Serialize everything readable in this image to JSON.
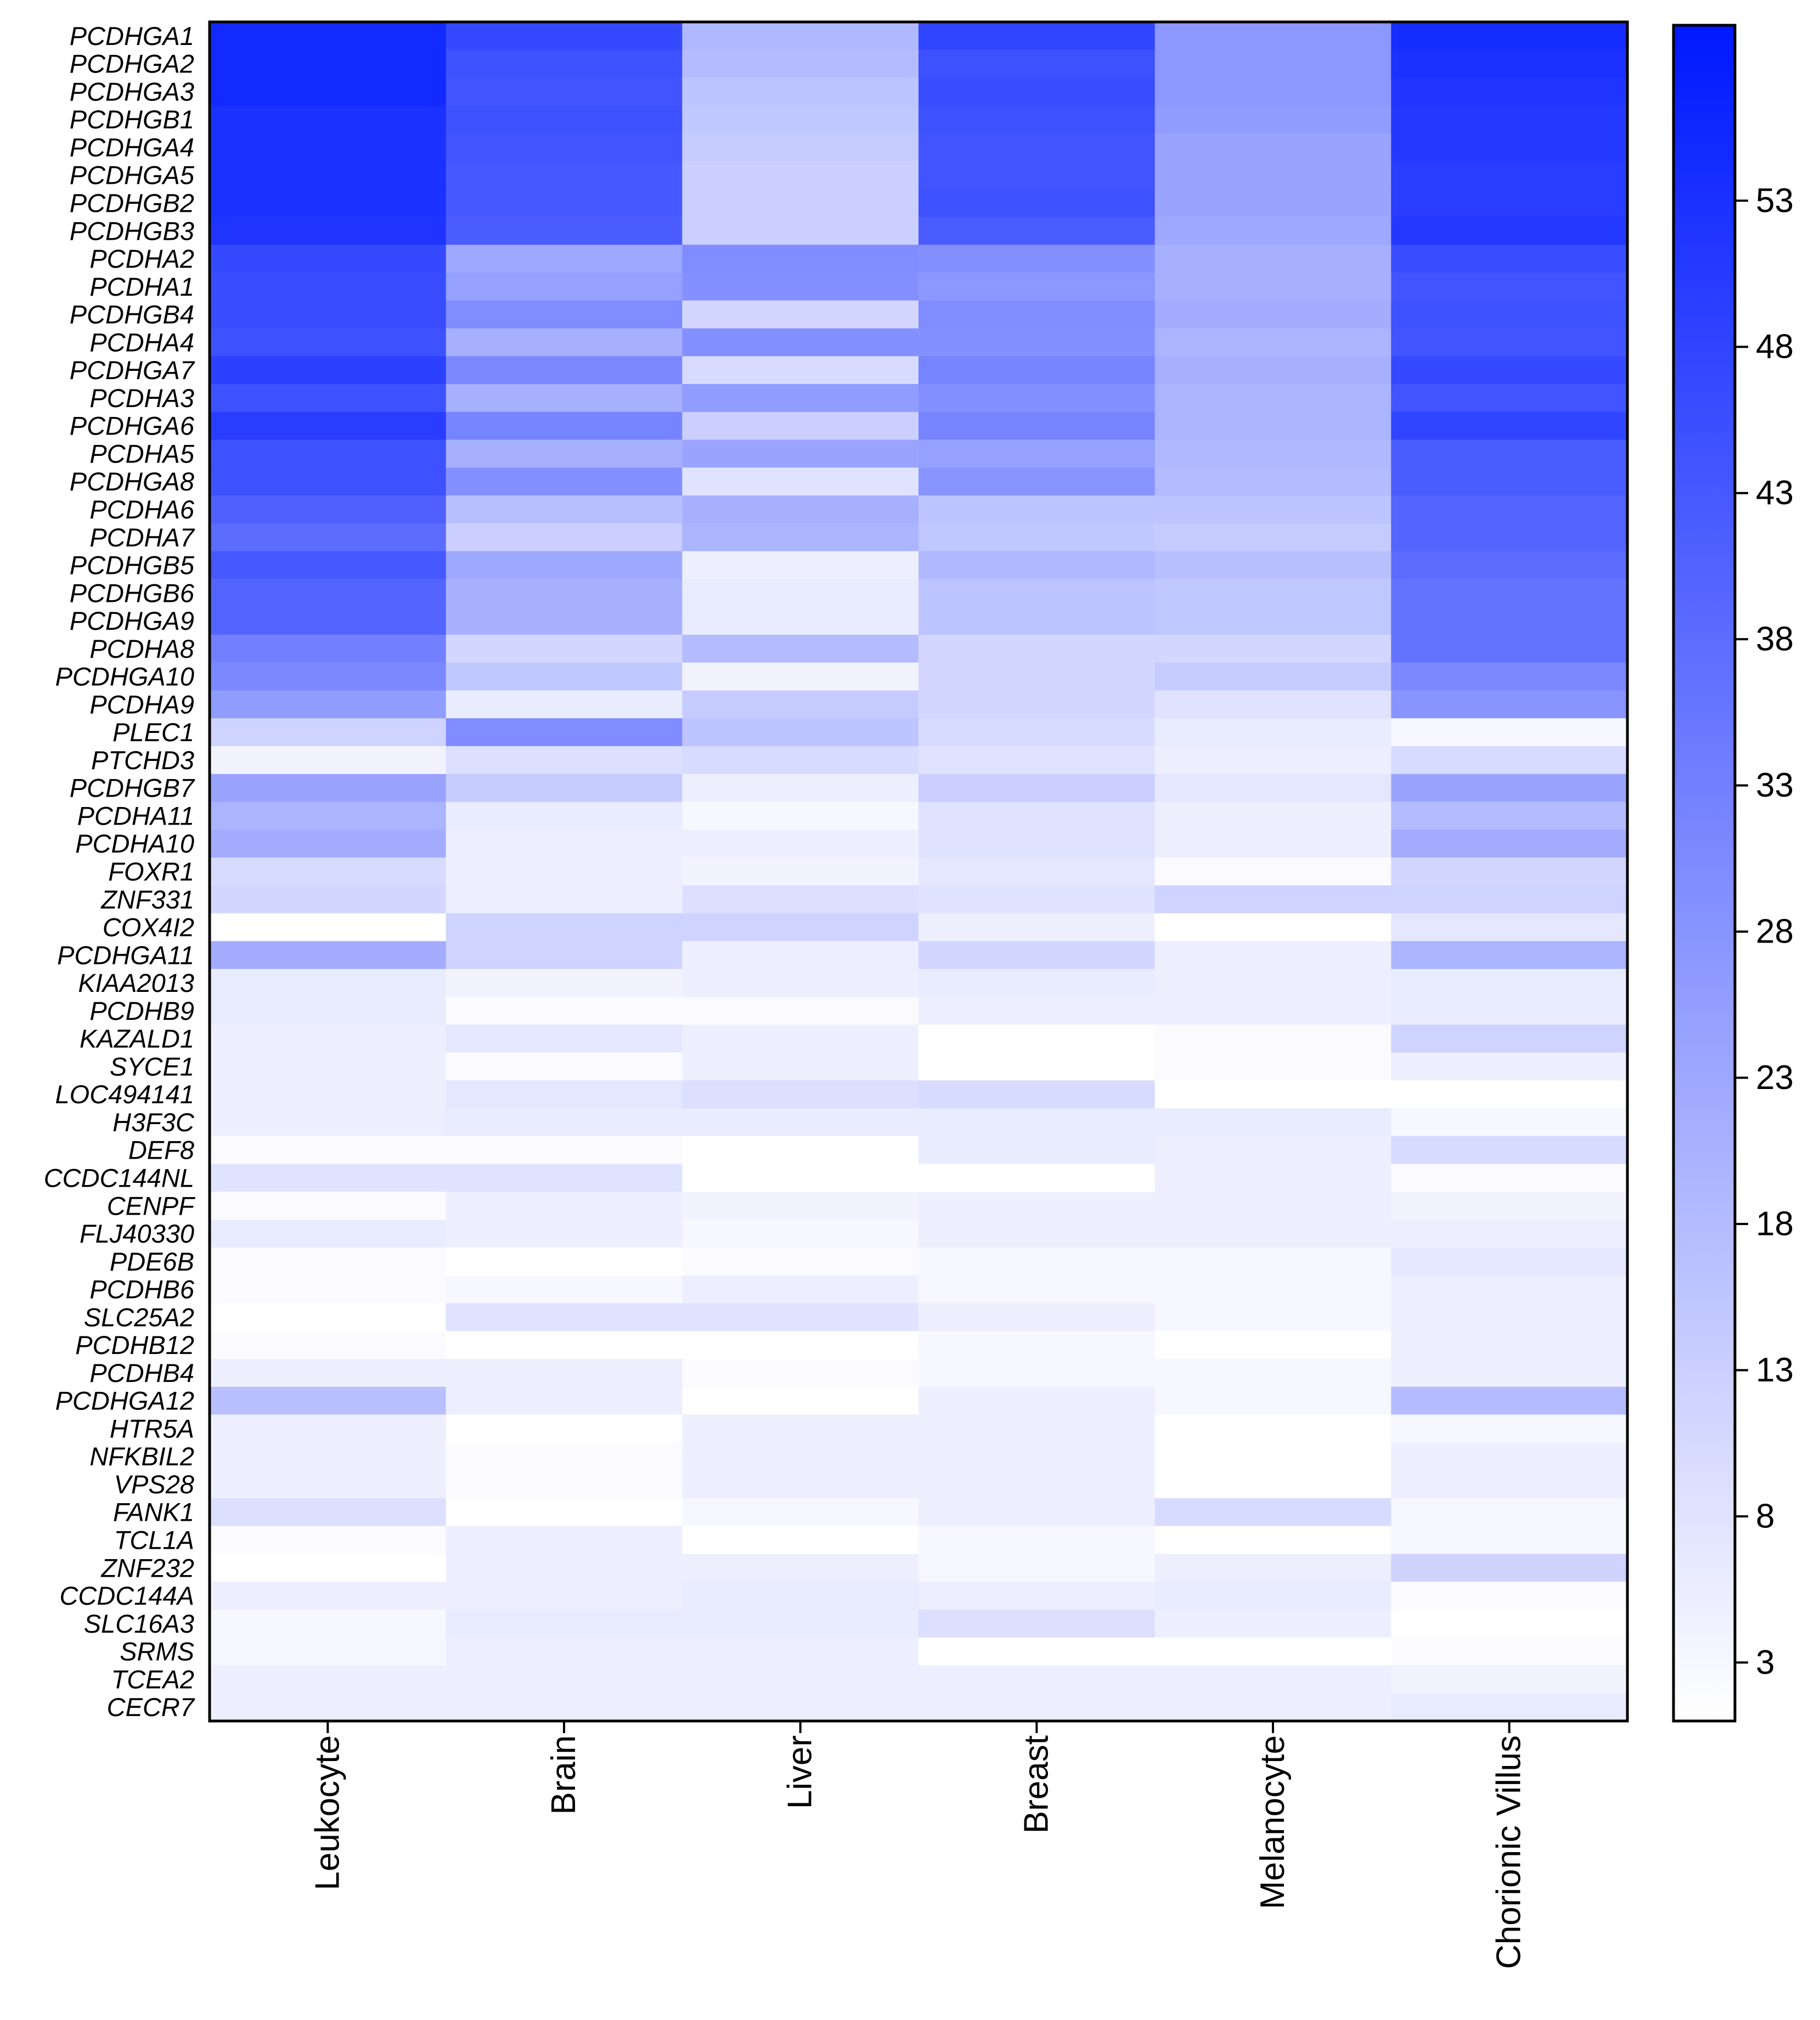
{
  "chart_data": {
    "type": "heatmap",
    "title": "",
    "xlabel": "",
    "ylabel": "",
    "columns": [
      "Leukocyte",
      "Brain",
      "Liver",
      "Breast",
      "Melanocyte",
      "Chorionic Villus"
    ],
    "rows": [
      {
        "gene": "PCDHGA1",
        "values": [
          55,
          47,
          19,
          48,
          27,
          54
        ]
      },
      {
        "gene": "PCDHGA2",
        "values": [
          55,
          45,
          18,
          45,
          27,
          53
        ]
      },
      {
        "gene": "PCDHGA3",
        "values": [
          55,
          44,
          16,
          46,
          27,
          52
        ]
      },
      {
        "gene": "PCDHGB1",
        "values": [
          53,
          45,
          15,
          45,
          26,
          51
        ]
      },
      {
        "gene": "PCDHGA4",
        "values": [
          53,
          44,
          14,
          44,
          24,
          51
        ]
      },
      {
        "gene": "PCDHGA5",
        "values": [
          53,
          43,
          13,
          44,
          24,
          50
        ]
      },
      {
        "gene": "PCDHGB2",
        "values": [
          53,
          43,
          13,
          45,
          24,
          50
        ]
      },
      {
        "gene": "PCDHGB3",
        "values": [
          52,
          42,
          13,
          42,
          23,
          51
        ]
      },
      {
        "gene": "PCDHA2",
        "values": [
          47,
          23,
          30,
          29,
          21,
          46
        ]
      },
      {
        "gene": "PCDHA1",
        "values": [
          46,
          25,
          29,
          27,
          21,
          44
        ]
      },
      {
        "gene": "PCDHGB4",
        "values": [
          46,
          30,
          11,
          30,
          22,
          45
        ]
      },
      {
        "gene": "PCDHA4",
        "values": [
          45,
          21,
          29,
          29,
          20,
          44
        ]
      },
      {
        "gene": "PCDHGA7",
        "values": [
          49,
          31,
          10,
          32,
          21,
          47
        ]
      },
      {
        "gene": "PCDHA3",
        "values": [
          45,
          21,
          26,
          29,
          20,
          44
        ]
      },
      {
        "gene": "PCDHGA6",
        "values": [
          50,
          32,
          13,
          32,
          20,
          48
        ]
      },
      {
        "gene": "PCDHA5",
        "values": [
          45,
          21,
          24,
          25,
          19,
          42
        ]
      },
      {
        "gene": "PCDHGA8",
        "values": [
          45,
          29,
          8,
          28,
          18,
          42
        ]
      },
      {
        "gene": "PCDHA6",
        "values": [
          41,
          17,
          21,
          16,
          16,
          40
        ]
      },
      {
        "gene": "PCDHA7",
        "values": [
          38,
          13,
          20,
          15,
          14,
          40
        ]
      },
      {
        "gene": "PCDHGB5",
        "values": [
          43,
          23,
          5,
          19,
          17,
          38
        ]
      },
      {
        "gene": "PCDHGB6",
        "values": [
          40,
          21,
          6,
          16,
          15,
          36
        ]
      },
      {
        "gene": "PCDHGA9",
        "values": [
          40,
          21,
          6,
          16,
          15,
          36
        ]
      },
      {
        "gene": "PCDHA8",
        "values": [
          33,
          11,
          18,
          11,
          11,
          36
        ]
      },
      {
        "gene": "PCDHGA10",
        "values": [
          31,
          15,
          4,
          11,
          14,
          31
        ]
      },
      {
        "gene": "PCDHA9",
        "values": [
          26,
          6,
          14,
          11,
          8,
          28
        ]
      },
      {
        "gene": "PLEC1",
        "values": [
          12,
          30,
          16,
          10,
          6,
          3
        ]
      },
      {
        "gene": "PTCHD3",
        "values": [
          4,
          9,
          10,
          8,
          5,
          10
        ]
      },
      {
        "gene": "PCDHGB7",
        "values": [
          24,
          14,
          5,
          13,
          7,
          24
        ]
      },
      {
        "gene": "PCDHA11",
        "values": [
          20,
          6,
          3,
          8,
          5,
          18
        ]
      },
      {
        "gene": "PCDHA10",
        "values": [
          22,
          5,
          5,
          8,
          5,
          22
        ]
      },
      {
        "gene": "FOXR1",
        "values": [
          10,
          5,
          4,
          7,
          2,
          11
        ]
      },
      {
        "gene": "ZNF331",
        "values": [
          11,
          5,
          9,
          8,
          12,
          12
        ]
      },
      {
        "gene": "COX4I2",
        "values": [
          0,
          12,
          12,
          5,
          0,
          7
        ]
      },
      {
        "gene": "PCDHGA11",
        "values": [
          22,
          12,
          5,
          11,
          5,
          20
        ]
      },
      {
        "gene": "KIAA2013",
        "values": [
          6,
          4,
          5,
          6,
          5,
          6
        ]
      },
      {
        "gene": "PCDHB9",
        "values": [
          6,
          2,
          2,
          5,
          5,
          6
        ]
      },
      {
        "gene": "KAZALD1",
        "values": [
          5,
          7,
          5,
          0,
          2,
          12
        ]
      },
      {
        "gene": "SYCE1",
        "values": [
          5,
          2,
          5,
          1,
          2,
          5
        ]
      },
      {
        "gene": "LOC494141",
        "values": [
          5,
          7,
          9,
          10,
          0,
          0
        ]
      },
      {
        "gene": "H3F3C",
        "values": [
          5,
          6,
          6,
          6,
          6,
          3
        ]
      },
      {
        "gene": "DEF8",
        "values": [
          2,
          2,
          0,
          6,
          5,
          10
        ]
      },
      {
        "gene": "CCDC144NL",
        "values": [
          8,
          8,
          0,
          0,
          5,
          2
        ]
      },
      {
        "gene": "CENPF",
        "values": [
          2,
          5,
          4,
          5,
          5,
          4
        ]
      },
      {
        "gene": "FLJ40330",
        "values": [
          6,
          5,
          3,
          5,
          5,
          5
        ]
      },
      {
        "gene": "PDE6B",
        "values": [
          2,
          0,
          2,
          3,
          3,
          7
        ]
      },
      {
        "gene": "PCDHB6",
        "values": [
          2,
          3,
          5,
          3,
          3,
          5
        ]
      },
      {
        "gene": "SLC25A2",
        "values": [
          0,
          8,
          8,
          5,
          3,
          5
        ]
      },
      {
        "gene": "PCDHB12",
        "values": [
          2,
          0,
          0,
          3,
          0,
          5
        ]
      },
      {
        "gene": "PCDHB4",
        "values": [
          5,
          5,
          2,
          3,
          3,
          5
        ]
      },
      {
        "gene": "PCDHGA12",
        "values": [
          17,
          5,
          0,
          5,
          3,
          18
        ]
      },
      {
        "gene": "HTR5A",
        "values": [
          5,
          0,
          5,
          5,
          0,
          3
        ]
      },
      {
        "gene": "NFKBIL2",
        "values": [
          5,
          2,
          5,
          5,
          0,
          5
        ]
      },
      {
        "gene": "VPS28",
        "values": [
          5,
          2,
          5,
          5,
          0,
          5
        ]
      },
      {
        "gene": "FANK1",
        "values": [
          9,
          0,
          3,
          5,
          10,
          3
        ]
      },
      {
        "gene": "TCL1A",
        "values": [
          2,
          5,
          0,
          3,
          0,
          3
        ]
      },
      {
        "gene": "ZNF232",
        "values": [
          0,
          5,
          5,
          3,
          5,
          12
        ]
      },
      {
        "gene": "CCDC144A",
        "values": [
          5,
          5,
          6,
          5,
          6,
          2
        ]
      },
      {
        "gene": "SLC16A3",
        "values": [
          3,
          6,
          6,
          9,
          5,
          0
        ]
      },
      {
        "gene": "SRMS",
        "values": [
          3,
          5,
          5,
          0,
          0,
          2
        ]
      },
      {
        "gene": "TCEA2",
        "values": [
          5,
          5,
          5,
          5,
          5,
          4
        ]
      },
      {
        "gene": "CECR7",
        "values": [
          5,
          5,
          5,
          5,
          5,
          6
        ]
      }
    ],
    "colorbar": {
      "min": 1,
      "max": 59,
      "ticks": [
        3,
        8,
        13,
        18,
        23,
        28,
        33,
        38,
        43,
        48,
        53
      ],
      "low_color": "#ffffff",
      "high_color": "#0019ff"
    }
  }
}
